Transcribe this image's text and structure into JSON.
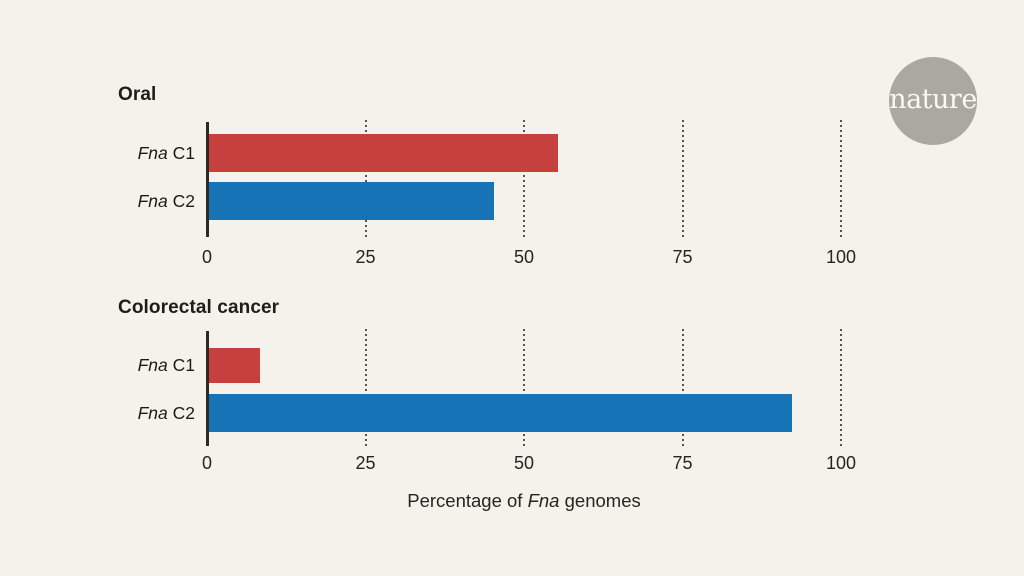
{
  "page": {
    "background": "#f4f2ea"
  },
  "logo": {
    "text": "nature",
    "circle_color": "#aba8a2",
    "text_color": "#faf8f2"
  },
  "xlabel": "Percentage of Fna genomes",
  "xlabel_parts": {
    "prefix": "Percentage of ",
    "italic": "Fna",
    "suffix": " genomes"
  },
  "colors": {
    "red": "#c6413e",
    "blue": "#1673b5",
    "axis": "#2b2a24",
    "background": "#f4f2ea"
  },
  "chart_data": [
    {
      "type": "bar",
      "orientation": "horizontal",
      "title": "Oral",
      "categories": [
        "Fna C1",
        "Fna C2"
      ],
      "rows": [
        {
          "label_italic": "Fna",
          "label_rest": " C1",
          "value": 55,
          "color": "#c6413e"
        },
        {
          "label_italic": "Fna",
          "label_rest": " C2",
          "value": 45,
          "color": "#1673b5"
        }
      ],
      "x_ticks": [
        0,
        25,
        50,
        75,
        100
      ],
      "xlim": [
        0,
        100
      ],
      "grid": "dotted-vertical",
      "legend": "none"
    },
    {
      "type": "bar",
      "orientation": "horizontal",
      "title": "Colorectal cancer",
      "categories": [
        "Fna C1",
        "Fna C2"
      ],
      "rows": [
        {
          "label_italic": "Fna",
          "label_rest": " C1",
          "value": 8,
          "color": "#c6413e"
        },
        {
          "label_italic": "Fna",
          "label_rest": " C2",
          "value": 92,
          "color": "#1673b5"
        }
      ],
      "x_ticks": [
        0,
        25,
        50,
        75,
        100
      ],
      "xlim": [
        0,
        100
      ],
      "grid": "dotted-vertical",
      "legend": "none"
    }
  ]
}
